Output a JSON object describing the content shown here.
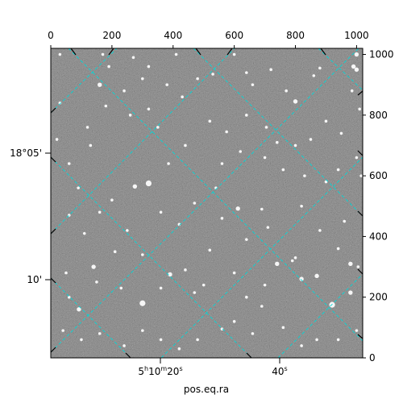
{
  "chart_data": {
    "type": "image",
    "title": "",
    "xlabel": "pos.eq.ra",
    "ylabel": "",
    "pixel_axes": {
      "x_range": [
        0,
        1020
      ],
      "y_range": [
        0,
        1020
      ],
      "top_ticks": [
        0,
        200,
        400,
        600,
        800,
        1000
      ],
      "right_ticks": [
        0,
        200,
        400,
        600,
        800,
        1000
      ]
    },
    "world_ticks": {
      "ra": [
        {
          "label_parts": [
            "5",
            "h",
            "10",
            "m",
            "20",
            "s"
          ]
        },
        {
          "label_parts": [
            "40",
            "s"
          ]
        }
      ],
      "dec": [
        {
          "label": "18°05'"
        },
        {
          "label": "10'"
        }
      ]
    },
    "grid": true,
    "grid_color": "#00d8d8",
    "image_colormap": "gray",
    "background_color": "#5a5a5a",
    "stars": [
      [
        92,
        160,
        3
      ],
      [
        300,
        180,
        4
      ],
      [
        470,
        215,
        2
      ],
      [
        390,
        275,
        3
      ],
      [
        300,
        340,
        2
      ],
      [
        200,
        520,
        2
      ],
      [
        320,
        820,
        2
      ],
      [
        480,
        920,
        2
      ],
      [
        160,
        900,
        3
      ],
      [
        140,
        300,
        3
      ],
      [
        110,
        410,
        2
      ],
      [
        275,
        565,
        3
      ],
      [
        320,
        575,
        4
      ],
      [
        385,
        640,
        2
      ],
      [
        440,
        700,
        2
      ],
      [
        350,
        760,
        2
      ],
      [
        260,
        800,
        2
      ],
      [
        130,
        700,
        2
      ],
      [
        60,
        470,
        2
      ],
      [
        560,
        460,
        2
      ],
      [
        520,
        355,
        2
      ],
      [
        612,
        492,
        3
      ],
      [
        690,
        490,
        2
      ],
      [
        740,
        310,
        3
      ],
      [
        800,
        330,
        2
      ],
      [
        830,
        600,
        2
      ],
      [
        900,
        580,
        2
      ],
      [
        960,
        450,
        2
      ],
      [
        940,
        620,
        2
      ],
      [
        1000,
        660,
        2
      ],
      [
        870,
        270,
        3
      ],
      [
        920,
        175,
        4
      ],
      [
        980,
        215,
        3
      ],
      [
        1000,
        950,
        3
      ],
      [
        985,
        880,
        2
      ],
      [
        880,
        955,
        2
      ],
      [
        800,
        845,
        3
      ],
      [
        770,
        880,
        2
      ],
      [
        720,
        950,
        2
      ],
      [
        600,
        1000,
        2
      ],
      [
        530,
        935,
        2
      ],
      [
        410,
        1000,
        2
      ],
      [
        380,
        900,
        2
      ],
      [
        270,
        990,
        2
      ],
      [
        190,
        960,
        2
      ],
      [
        30,
        1000,
        2
      ],
      [
        170,
        1000,
        2
      ],
      [
        320,
        960,
        2
      ],
      [
        430,
        860,
        2
      ],
      [
        520,
        780,
        2
      ],
      [
        575,
        745,
        2
      ],
      [
        640,
        800,
        2
      ],
      [
        705,
        760,
        2
      ],
      [
        740,
        710,
        2
      ],
      [
        800,
        700,
        2
      ],
      [
        850,
        720,
        2
      ],
      [
        900,
        780,
        2
      ],
      [
        950,
        740,
        2
      ],
      [
        1010,
        820,
        2
      ],
      [
        1015,
        600,
        2
      ],
      [
        640,
        200,
        2
      ],
      [
        690,
        170,
        2
      ],
      [
        560,
        95,
        2
      ],
      [
        600,
        120,
        2
      ],
      [
        660,
        80,
        2
      ],
      [
        760,
        100,
        2
      ],
      [
        820,
        40,
        2
      ],
      [
        870,
        60,
        2
      ],
      [
        940,
        60,
        2
      ],
      [
        1000,
        90,
        2
      ],
      [
        480,
        60,
        2
      ],
      [
        420,
        30,
        2
      ],
      [
        360,
        60,
        2
      ],
      [
        300,
        90,
        2
      ],
      [
        240,
        40,
        2
      ],
      [
        160,
        80,
        2
      ],
      [
        100,
        60,
        2
      ],
      [
        40,
        90,
        2
      ],
      [
        60,
        200,
        2
      ],
      [
        230,
        230,
        2
      ],
      [
        360,
        230,
        2
      ],
      [
        440,
        290,
        2
      ],
      [
        500,
        240,
        2
      ],
      [
        600,
        280,
        2
      ],
      [
        700,
        240,
        2
      ],
      [
        1000,
        1000,
        3
      ],
      [
        990,
        960,
        3
      ],
      [
        820,
        260,
        3
      ],
      [
        790,
        320,
        2
      ],
      [
        710,
        430,
        2
      ],
      [
        640,
        390,
        2
      ],
      [
        540,
        560,
        2
      ],
      [
        470,
        510,
        2
      ],
      [
        420,
        440,
        2
      ],
      [
        360,
        480,
        2
      ],
      [
        560,
        640,
        2
      ],
      [
        620,
        680,
        2
      ],
      [
        700,
        660,
        2
      ],
      [
        760,
        620,
        2
      ],
      [
        820,
        500,
        2
      ],
      [
        880,
        420,
        2
      ],
      [
        940,
        360,
        2
      ],
      [
        1005,
        300,
        2
      ],
      [
        50,
        280,
        2
      ],
      [
        150,
        250,
        2
      ],
      [
        210,
        350,
        2
      ],
      [
        250,
        420,
        2
      ],
      [
        160,
        480,
        2
      ],
      [
        90,
        560,
        2
      ],
      [
        60,
        640,
        2
      ],
      [
        120,
        760,
        2
      ],
      [
        180,
        830,
        2
      ],
      [
        240,
        880,
        2
      ],
      [
        300,
        920,
        2
      ],
      [
        980,
        310,
        3
      ],
      [
        860,
        930,
        2
      ],
      [
        660,
        900,
        2
      ],
      [
        640,
        940,
        2
      ],
      [
        20,
        720,
        2
      ],
      [
        30,
        840,
        2
      ]
    ]
  }
}
